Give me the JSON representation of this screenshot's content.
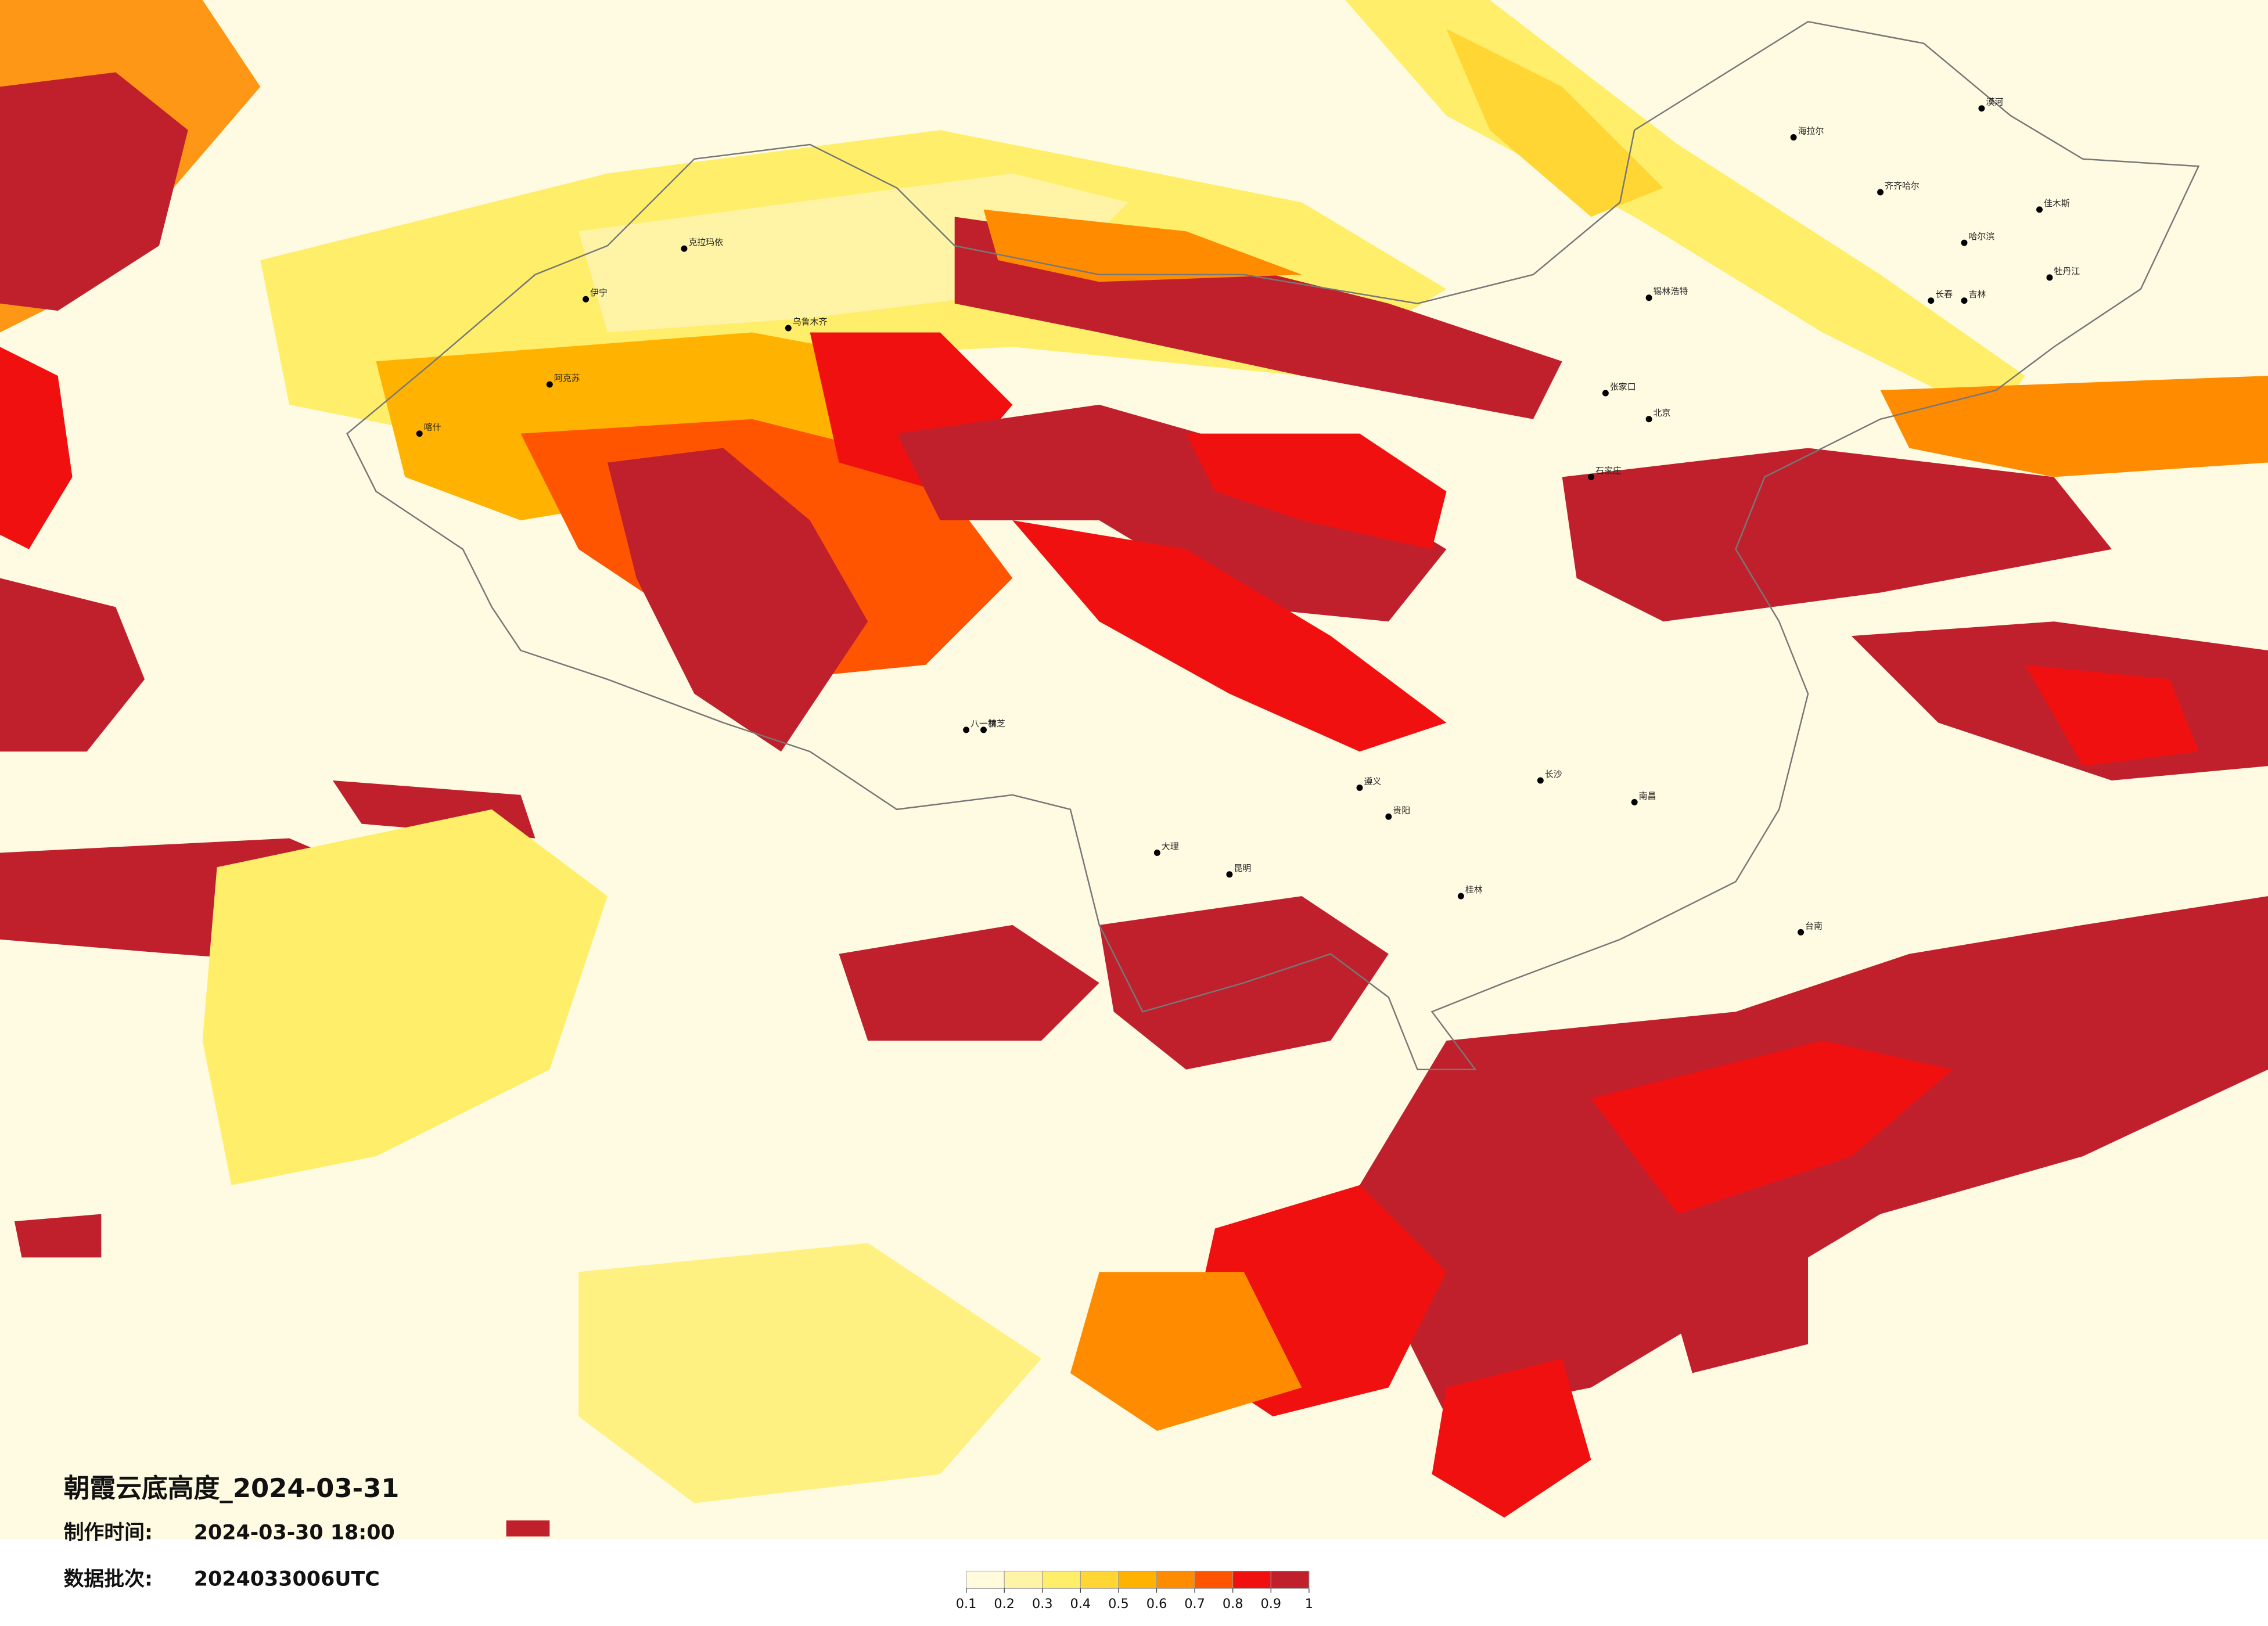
{
  "title": "朝霞云底高度_2024-03-31",
  "made_label": "制作时间:",
  "made_time": "2024-03-30 18:00",
  "batch_label": "数据批次:",
  "batch": "2024033006UTC",
  "legend": {
    "ticks": [
      0.1,
      0.2,
      0.3,
      0.4,
      0.5,
      0.6,
      0.7,
      0.8,
      0.9,
      1
    ],
    "colors": [
      "#fffbdc",
      "#fff4a6",
      "#ffee6a",
      "#ffd633",
      "#ffb300",
      "#ff8c00",
      "#ff5500",
      "#f01010",
      "#c0202c"
    ]
  },
  "cities": [
    "漠河",
    "海拉尔",
    "齐齐哈尔",
    "哈尔滨",
    "佳木斯",
    "长春",
    "吉林",
    "牡丹江",
    "锡林浩特",
    "北京",
    "张家口",
    "石家庄",
    "克拉玛依",
    "伊宁",
    "乌鲁木齐",
    "阿克苏",
    "喀什",
    "八一镇",
    "林芝",
    "昆明",
    "大理",
    "贵阳",
    "遵义",
    "长沙",
    "南昌",
    "桂林",
    "台南"
  ]
}
